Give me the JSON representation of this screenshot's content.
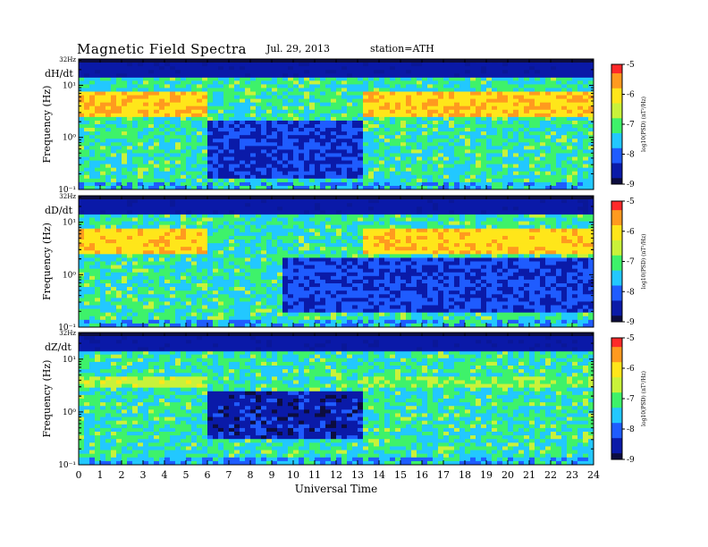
{
  "header": {
    "title": "Magnetic Field Spectra",
    "date": "Jul. 29, 2013",
    "station": "station=ATH"
  },
  "colormap": [
    "#0d0d3f",
    "#0a1aa8",
    "#1f5cff",
    "#22c8ff",
    "#3ef26a",
    "#c9f23a",
    "#ffe61a",
    "#ff9a1f",
    "#ff2a2a",
    "#ffd0d8"
  ],
  "chart_data": [
    {
      "type": "heatmap",
      "panel": "dH/dt",
      "title": "dH/dt",
      "xlabel": "",
      "ylabel": "Frequency (Hz)",
      "xlim": [
        0,
        24
      ],
      "x_ticks": [
        "0",
        "1",
        "2",
        "3",
        "4",
        "5",
        "6",
        "7",
        "8",
        "9",
        "10",
        "11",
        "12",
        "13",
        "14",
        "15",
        "16",
        "17",
        "18",
        "19",
        "20",
        "21",
        "22",
        "23",
        "24"
      ],
      "y_scale": "log",
      "ylim": [
        0.1,
        32
      ],
      "y_ticks": [
        "32Hz",
        "10¹",
        "10⁰",
        "10⁻¹"
      ],
      "colorbar": {
        "label": "log10(PSD) (nT²/Hz)",
        "range": [
          -9,
          -5
        ],
        "ticks": [
          "-5",
          "-6",
          "-7",
          "-8",
          "-9"
        ]
      },
      "bands": [
        {
          "f_low": 2.5,
          "f_high": 8,
          "x_start": 0,
          "x_end": 6,
          "value": -5.8
        },
        {
          "f_low": 2.5,
          "f_high": 8,
          "x_start": 13.3,
          "x_end": 24,
          "value": -5.8
        }
      ],
      "quiet_region": {
        "x_start": 6,
        "x_end": 13.3,
        "f_low": 0.15,
        "f_high": 2,
        "value": -8.3
      }
    },
    {
      "type": "heatmap",
      "panel": "dD/dt",
      "title": "dD/dt",
      "xlabel": "",
      "ylabel": "Frequency (Hz)",
      "xlim": [
        0,
        24
      ],
      "x_ticks": [
        "0",
        "1",
        "2",
        "3",
        "4",
        "5",
        "6",
        "7",
        "8",
        "9",
        "10",
        "11",
        "12",
        "13",
        "14",
        "15",
        "16",
        "17",
        "18",
        "19",
        "20",
        "21",
        "22",
        "23",
        "24"
      ],
      "y_scale": "log",
      "ylim": [
        0.1,
        32
      ],
      "y_ticks": [
        "32Hz",
        "10¹",
        "10⁰",
        "10⁻¹"
      ],
      "colorbar": {
        "label": "log10(PSD) (nT²/Hz)",
        "range": [
          -9,
          -5
        ],
        "ticks": [
          "-5",
          "-6",
          "-7",
          "-8",
          "-9"
        ]
      },
      "bands": [
        {
          "f_low": 2.5,
          "f_high": 7,
          "x_start": 0,
          "x_end": 6,
          "value": -5.9
        },
        {
          "f_low": 2.5,
          "f_high": 7,
          "x_start": 13.3,
          "x_end": 24,
          "value": -5.9
        }
      ],
      "quiet_region": {
        "x_start": 9.5,
        "x_end": 24,
        "f_low": 0.2,
        "f_high": 2,
        "value": -8.2
      }
    },
    {
      "type": "heatmap",
      "panel": "dZ/dt",
      "title": "dZ/dt",
      "xlabel": "Universal Time",
      "ylabel": "Frequency (Hz)",
      "xlim": [
        0,
        24
      ],
      "x_ticks": [
        "0",
        "1",
        "2",
        "3",
        "4",
        "5",
        "6",
        "7",
        "8",
        "9",
        "10",
        "11",
        "12",
        "13",
        "14",
        "15",
        "16",
        "17",
        "18",
        "19",
        "20",
        "21",
        "22",
        "23",
        "24"
      ],
      "y_scale": "log",
      "ylim": [
        0.1,
        32
      ],
      "y_ticks": [
        "32Hz",
        "10¹",
        "10⁰",
        "10⁻¹"
      ],
      "colorbar": {
        "label": "log10(PSD) (nT²/Hz)",
        "range": [
          -9,
          -5
        ],
        "ticks": [
          "-5",
          "-6",
          "-7",
          "-8",
          "-9"
        ]
      },
      "bands": [
        {
          "f_low": 3,
          "f_high": 4.5,
          "x_start": 0,
          "x_end": 6,
          "value": -6.5
        },
        {
          "f_low": 3,
          "f_high": 4.5,
          "x_start": 13.3,
          "x_end": 24,
          "value": -6.8
        }
      ],
      "quiet_region": {
        "x_start": 6,
        "x_end": 13.3,
        "f_low": 0.3,
        "f_high": 2.5,
        "value": -8.5
      }
    }
  ]
}
